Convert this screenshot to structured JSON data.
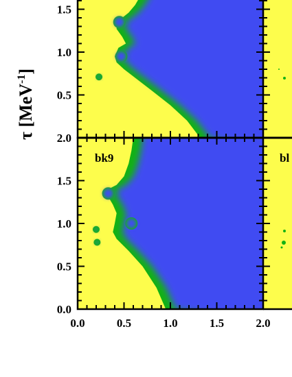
{
  "chart_data": {
    "type": "heatmap",
    "ylabel": "τ [MeV",
    "ylabel_sup": "-1",
    "ylabel_close": "]",
    "colors": {
      "background": "#fdfd4c",
      "edge": "#12b214",
      "interior": "#3f4cf2",
      "spot": "#2f8c8c"
    },
    "x_ticks": [
      "0.0",
      "0.5",
      "1.0",
      "1.5",
      "2.0"
    ],
    "y_ticks_top": [
      "0.5",
      "1.0",
      "1.5"
    ],
    "y_ticks_bottom": [
      "0.0",
      "0.5",
      "1.0",
      "1.5",
      "2.0"
    ],
    "panels": [
      {
        "name": "",
        "label_partial": "",
        "xlim": [
          0,
          2
        ],
        "ylim": [
          0,
          2
        ],
        "visible_y_range": [
          0.25,
          1.7
        ],
        "boundary": [
          [
            1.32,
            0.0
          ],
          [
            1.18,
            0.2
          ],
          [
            1.0,
            0.38
          ],
          [
            0.8,
            0.55
          ],
          [
            0.62,
            0.7
          ],
          [
            0.5,
            0.8
          ],
          [
            0.42,
            0.88
          ],
          [
            0.4,
            0.95
          ],
          [
            0.44,
            1.05
          ],
          [
            0.52,
            1.1
          ],
          [
            0.48,
            1.18
          ],
          [
            0.42,
            1.27
          ],
          [
            0.42,
            1.35
          ],
          [
            0.48,
            1.4
          ],
          [
            0.55,
            1.46
          ],
          [
            0.62,
            1.55
          ],
          [
            0.7,
            1.7
          ],
          [
            0.75,
            2.0
          ]
        ],
        "spots": [
          {
            "x": 0.45,
            "y": 1.35
          },
          {
            "x": 0.47,
            "y": 0.95
          },
          {
            "x": 0.23,
            "y": 0.71
          }
        ]
      },
      {
        "name": "bk9",
        "label_partial": "bl",
        "xlim": [
          0,
          2
        ],
        "ylim": [
          0,
          2
        ],
        "visible_y_range": [
          0,
          2
        ],
        "boundary": [
          [
            0.95,
            0.0
          ],
          [
            0.85,
            0.25
          ],
          [
            0.7,
            0.5
          ],
          [
            0.55,
            0.68
          ],
          [
            0.42,
            0.82
          ],
          [
            0.38,
            0.9
          ],
          [
            0.4,
            1.0
          ],
          [
            0.42,
            1.12
          ],
          [
            0.38,
            1.22
          ],
          [
            0.32,
            1.33
          ],
          [
            0.33,
            1.4
          ],
          [
            0.42,
            1.45
          ],
          [
            0.5,
            1.55
          ],
          [
            0.55,
            1.7
          ],
          [
            0.58,
            1.85
          ],
          [
            0.6,
            2.0
          ]
        ],
        "spots": [
          {
            "x": 0.33,
            "y": 1.35
          },
          {
            "x": 0.58,
            "y": 1.0
          },
          {
            "x": 0.2,
            "y": 0.93
          },
          {
            "x": 0.21,
            "y": 0.78
          }
        ]
      }
    ]
  }
}
